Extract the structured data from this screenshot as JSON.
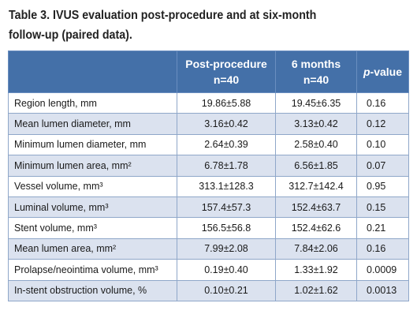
{
  "title": {
    "line1": "Table 3. IVUS evaluation post-procedure and at six-month",
    "line2": "follow-up (paired data)."
  },
  "header": {
    "col0": "",
    "col1_line1": "Post-procedure",
    "col1_line2": "n=40",
    "col2_line1": "6 months",
    "col2_line2": "n=40",
    "col3_italic": "p",
    "col3_rest": "-value"
  },
  "rows": [
    {
      "label": "Region length, mm",
      "post": "19.86±5.88",
      "six": "19.45±6.35",
      "p": "0.16"
    },
    {
      "label": "Mean lumen diameter, mm",
      "post": "3.16±0.42",
      "six": "3.13±0.42",
      "p": "0.12"
    },
    {
      "label": "Minimum lumen diameter, mm",
      "post": "2.64±0.39",
      "six": "2.58±0.40",
      "p": "0.10"
    },
    {
      "label": "Minimum lumen area, mm²",
      "post": "6.78±1.78",
      "six": "6.56±1.85",
      "p": "0.07"
    },
    {
      "label": "Vessel volume, mm³",
      "post": "313.1±128.3",
      "six": "312.7±142.4",
      "p": "0.95"
    },
    {
      "label": "Luminal volume, mm³",
      "post": "157.4±57.3",
      "six": "152.4±63.7",
      "p": "0.15"
    },
    {
      "label": "Stent volume, mm³",
      "post": "156.5±56.8",
      "six": "152.4±62.6",
      "p": "0.21"
    },
    {
      "label": "Mean lumen area, mm²",
      "post": "7.99±2.08",
      "six": "7.84±2.06",
      "p": "0.16"
    },
    {
      "label": "Prolapse/neointima volume, mm³",
      "post": "0.19±0.40",
      "six": "1.33±1.92",
      "p": "0.0009"
    },
    {
      "label": "In-stent obstruction volume, %",
      "post": "0.10±0.21",
      "six": "1.02±1.62",
      "p": "0.0013"
    }
  ],
  "colors": {
    "header_bg": "#4470a8",
    "stripe_bg": "#dbe2ef"
  }
}
